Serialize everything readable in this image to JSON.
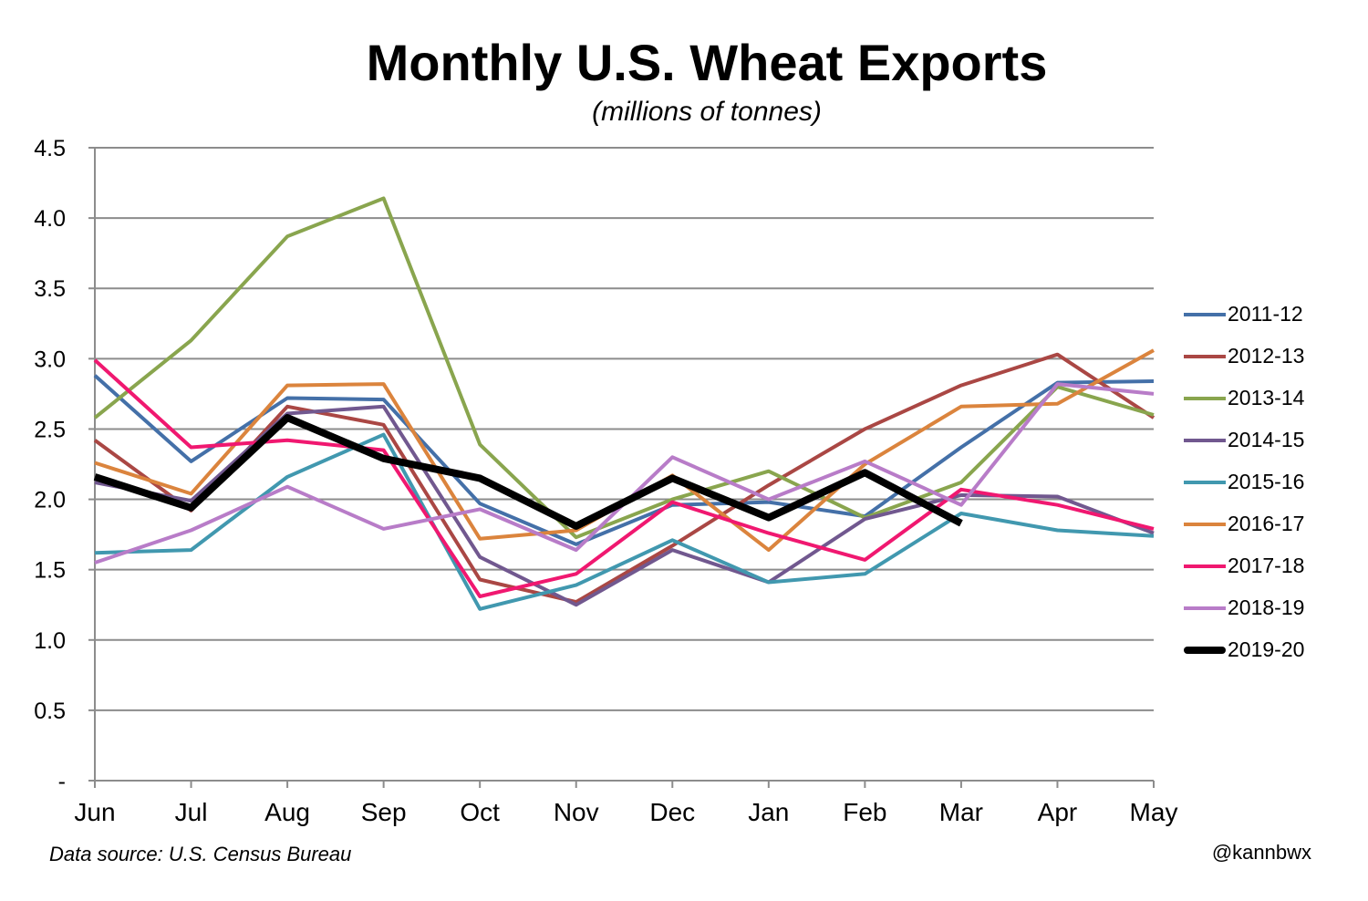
{
  "chart_data": {
    "type": "line",
    "title": "Monthly U.S. Wheat Exports",
    "subtitle": "(millions of tonnes)",
    "x": [
      "Jun",
      "Jul",
      "Aug",
      "Sep",
      "Oct",
      "Nov",
      "Dec",
      "Jan",
      "Feb",
      "Mar",
      "Apr",
      "May"
    ],
    "ylim": [
      0,
      4.5
    ],
    "y_ticks": [
      "-",
      "0.5",
      "1.0",
      "1.5",
      "2.0",
      "2.5",
      "3.0",
      "3.5",
      "4.0",
      "4.5"
    ],
    "y_tick_values": [
      0,
      0.5,
      1.0,
      1.5,
      2.0,
      2.5,
      3.0,
      3.5,
      4.0,
      4.5
    ],
    "grid": "horizontal",
    "legend": "right",
    "series": [
      {
        "name": "2011-12",
        "color": "#4470a8",
        "width": 4,
        "values": [
          2.88,
          2.27,
          2.72,
          2.71,
          1.97,
          1.68,
          1.96,
          1.98,
          1.88,
          2.37,
          2.83,
          2.84
        ]
      },
      {
        "name": "2012-13",
        "color": "#aa4744",
        "width": 4,
        "values": [
          2.42,
          1.92,
          2.66,
          2.53,
          1.43,
          1.27,
          1.67,
          2.1,
          2.5,
          2.81,
          3.03,
          2.58
        ]
      },
      {
        "name": "2013-14",
        "color": "#89a54e",
        "width": 4,
        "values": [
          2.58,
          3.13,
          3.87,
          4.14,
          2.39,
          1.73,
          2.0,
          2.2,
          1.87,
          2.12,
          2.8,
          2.6
        ]
      },
      {
        "name": "2014-15",
        "color": "#71588f",
        "width": 4,
        "values": [
          2.12,
          1.99,
          2.61,
          2.66,
          1.59,
          1.25,
          1.64,
          1.41,
          1.86,
          2.03,
          2.02,
          1.76
        ]
      },
      {
        "name": "2015-16",
        "color": "#4198af",
        "width": 4,
        "values": [
          1.62,
          1.64,
          2.16,
          2.46,
          1.22,
          1.39,
          1.71,
          1.41,
          1.47,
          1.9,
          1.78,
          1.74
        ]
      },
      {
        "name": "2016-17",
        "color": "#db843d",
        "width": 4,
        "values": [
          2.26,
          2.04,
          2.81,
          2.82,
          1.72,
          1.78,
          2.17,
          1.64,
          2.25,
          2.66,
          2.68,
          3.06
        ]
      },
      {
        "name": "2017-18",
        "color": "#f01870",
        "width": 4,
        "values": [
          2.99,
          2.37,
          2.42,
          2.35,
          1.31,
          1.47,
          1.98,
          1.76,
          1.57,
          2.07,
          1.96,
          1.79
        ]
      },
      {
        "name": "2018-19",
        "color": "#b87cc8",
        "width": 4,
        "values": [
          1.55,
          1.78,
          2.09,
          1.79,
          1.93,
          1.64,
          2.3,
          2.0,
          2.27,
          1.96,
          2.82,
          2.75
        ]
      },
      {
        "name": "2019-20",
        "color": "#000000",
        "width": 8,
        "values": [
          2.16,
          1.94,
          2.58,
          2.29,
          2.15,
          1.81,
          2.15,
          1.87,
          2.19,
          1.83,
          null,
          null
        ]
      }
    ]
  },
  "footer": {
    "source": "Data source: U.S. Census Bureau",
    "handle": "@kannbwx"
  }
}
